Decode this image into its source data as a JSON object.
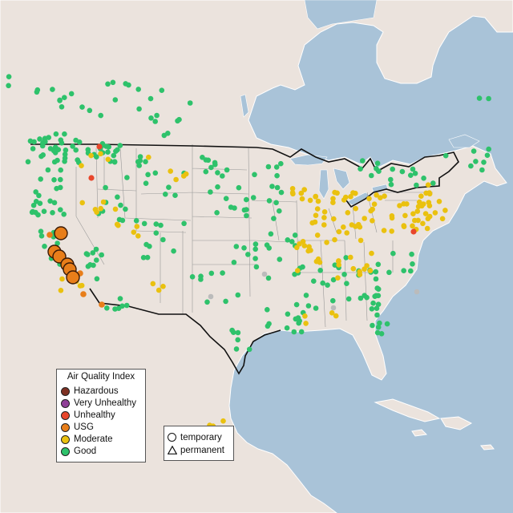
{
  "legend": {
    "title": "Air Quality Index",
    "categories": [
      {
        "label": "Hazardous",
        "color": "#7e3123"
      },
      {
        "label": "Very Unhealthy",
        "color": "#8f3f97"
      },
      {
        "label": "Unhealthy",
        "color": "#e8462b"
      },
      {
        "label": "USG",
        "color": "#e87e1a"
      },
      {
        "label": "Moderate",
        "color": "#eac10f"
      },
      {
        "label": "Good",
        "color": "#2ec26b"
      }
    ]
  },
  "shape_legend": {
    "temporary": "temporary",
    "permanent": "permanent"
  },
  "colors": {
    "water": "#a9c3d8",
    "land": "#ebe3dd",
    "land_border": "#ffffff",
    "us_outline": "#111111",
    "state_lines": "#999999",
    "no_data": "#bbbbbb"
  },
  "monitors": {
    "usg_large": [
      [
        76,
        291
      ],
      [
        68,
        314
      ],
      [
        74,
        320
      ],
      [
        84,
        330
      ],
      [
        87,
        336
      ],
      [
        91,
        346
      ]
    ],
    "unhealthy": [
      [
        516,
        289
      ],
      [
        124,
        183
      ],
      [
        114,
        222
      ]
    ],
    "usg_small": [
      [
        127,
        380
      ],
      [
        62,
        293
      ],
      [
        100,
        341
      ],
      [
        104,
        367
      ]
    ],
    "nodata": [
      [
        330,
        342
      ],
      [
        263,
        370
      ],
      [
        416,
        384
      ],
      [
        520,
        364
      ]
    ]
  }
}
